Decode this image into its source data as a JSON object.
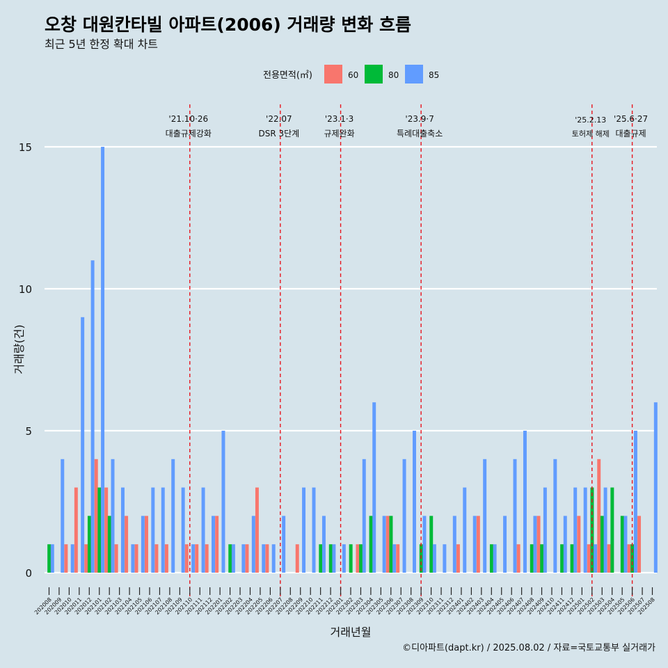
{
  "header": {
    "title": "오창 대원칸타빌 아파트(2006) 거래량 변화 흐름",
    "subtitle": "최근 5년 한정 확대 차트"
  },
  "legend": {
    "title": "전용면적(㎡)",
    "items": [
      {
        "label": "60",
        "color": "#f8766d"
      },
      {
        "label": "80",
        "color": "#00ba38"
      },
      {
        "label": "85",
        "color": "#619cff"
      }
    ]
  },
  "caption": "©디아파트(dapt.kr) / 2025.08.02 / 자료=국토교통부 실거래가",
  "chart_data": {
    "type": "bar",
    "xlabel": "거래년월",
    "ylabel": "거래량(건)",
    "ylim": [
      0,
      15
    ],
    "yticks": [
      0,
      5,
      10,
      15
    ],
    "grid": true,
    "legend_position": "top",
    "categories": [
      "202008",
      "202009",
      "202010",
      "202011",
      "202012",
      "202101",
      "202102",
      "202103",
      "202104",
      "202105",
      "202106",
      "202107",
      "202108",
      "202109",
      "202110",
      "202111",
      "202112",
      "202201",
      "202202",
      "202203",
      "202204",
      "202205",
      "202206",
      "202207",
      "202208",
      "202209",
      "202210",
      "202211",
      "202212",
      "202301",
      "202302",
      "202303",
      "202304",
      "202305",
      "202306",
      "202307",
      "202308",
      "202309",
      "202310",
      "202311",
      "202312",
      "202401",
      "202402",
      "202403",
      "202404",
      "202405",
      "202406",
      "202407",
      "202408",
      "202409",
      "202410",
      "202411",
      "202412",
      "202501",
      "202502",
      "202503",
      "202504",
      "202505",
      "202506",
      "202507",
      "202508"
    ],
    "series": [
      {
        "name": "60",
        "color": "#f8766d",
        "values": [
          0,
          0,
          1,
          3,
          1,
          4,
          3,
          1,
          2,
          1,
          2,
          1,
          1,
          0,
          1,
          1,
          1,
          2,
          0,
          0,
          1,
          3,
          1,
          0,
          0,
          1,
          0,
          0,
          0,
          0,
          0,
          1,
          0,
          0,
          2,
          1,
          0,
          0,
          0,
          0,
          0,
          1,
          0,
          2,
          0,
          0,
          0,
          1,
          0,
          2,
          0,
          0,
          0,
          2,
          1,
          4,
          1,
          0,
          1,
          2,
          0
        ]
      },
      {
        "name": "80",
        "color": "#00ba38",
        "values": [
          1,
          0,
          0,
          0,
          2,
          3,
          2,
          0,
          0,
          0,
          0,
          0,
          0,
          0,
          0,
          0,
          0,
          0,
          1,
          0,
          0,
          0,
          0,
          0,
          0,
          0,
          0,
          1,
          1,
          0,
          1,
          1,
          2,
          0,
          2,
          0,
          0,
          1,
          2,
          0,
          0,
          0,
          0,
          0,
          1,
          0,
          0,
          0,
          1,
          1,
          0,
          1,
          1,
          0,
          3,
          2,
          3,
          2,
          1,
          0,
          0
        ]
      },
      {
        "name": "85",
        "color": "#619cff",
        "values": [
          1,
          4,
          1,
          9,
          11,
          15,
          4,
          3,
          1,
          2,
          3,
          3,
          4,
          3,
          1,
          3,
          2,
          5,
          1,
          1,
          2,
          1,
          1,
          2,
          0,
          3,
          3,
          2,
          1,
          1,
          0,
          4,
          6,
          2,
          1,
          4,
          5,
          2,
          1,
          1,
          2,
          3,
          2,
          4,
          1,
          2,
          4,
          5,
          2,
          3,
          4,
          2,
          3,
          3,
          1,
          3,
          0,
          2,
          5,
          0,
          6
        ]
      }
    ],
    "annotations": [
      {
        "date_label": "'21.10·26",
        "event_label": "대출규제강화",
        "at": "202110"
      },
      {
        "date_label": "'22.07",
        "event_label": "DSR 3단계",
        "at": "202207"
      },
      {
        "date_label": "'23.1·3",
        "event_label": "규제완화",
        "at": "202301"
      },
      {
        "date_label": "'23.9·7",
        "event_label": "특례대출축소",
        "at": "202309"
      },
      {
        "date_label": "'25.2.13",
        "event_label": "토허제 해제",
        "at": "202502"
      },
      {
        "date_label": "'25.6·27",
        "event_label": "대출규제",
        "at": "202506"
      }
    ]
  }
}
